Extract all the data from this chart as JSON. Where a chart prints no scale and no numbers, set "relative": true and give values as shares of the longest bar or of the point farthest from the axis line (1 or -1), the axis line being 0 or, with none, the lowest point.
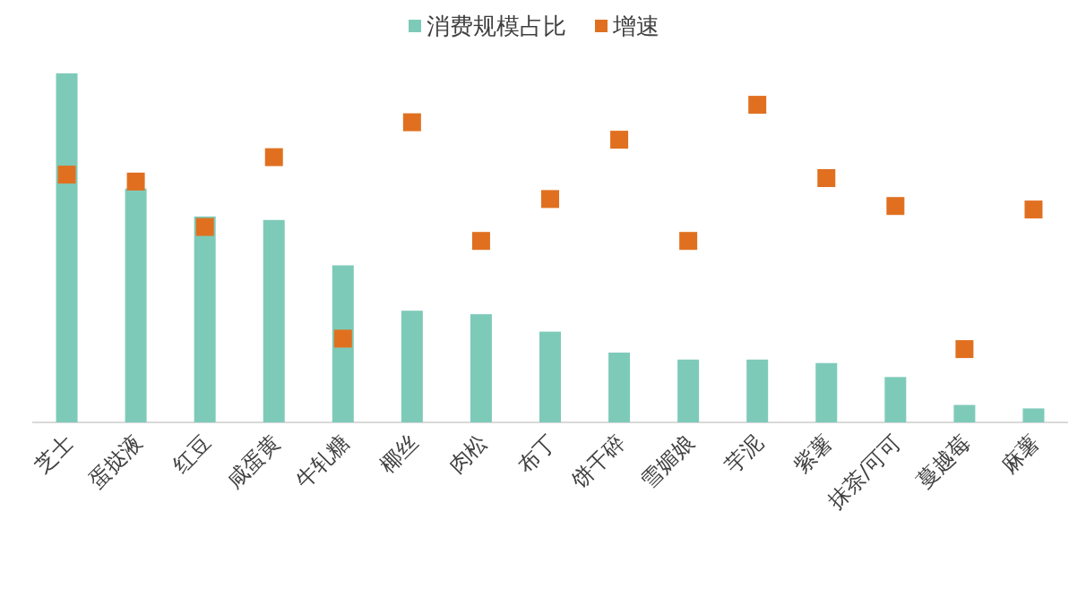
{
  "chart_data": {
    "type": "bar",
    "relative": true,
    "legend": "top",
    "categories": [
      "芝士",
      "蛋挞液",
      "红豆",
      "咸蛋黄",
      "牛轧糖",
      "椰丝",
      "肉松",
      "布丁",
      "饼干碎",
      "雪媚娘",
      "芋泥",
      "紫薯",
      "抹茶/可可",
      "蔓越莓",
      "麻薯"
    ],
    "series": [
      {
        "name": "消费规模占比",
        "color": "#7ecab9",
        "values": [
          1,
          0.67,
          0.59,
          0.58,
          0.45,
          0.32,
          0.31,
          0.26,
          0.2,
          0.18,
          0.18,
          0.17,
          0.13,
          0.05,
          0.04
        ]
      },
      {
        "name": "增速",
        "type": "scatter",
        "marker": "square",
        "color": "#e07020",
        "values": [
          0.71,
          0.69,
          0.56,
          0.76,
          0.24,
          0.86,
          0.52,
          0.64,
          0.81,
          0.52,
          0.91,
          0.7,
          0.62,
          0.21,
          0.61
        ]
      }
    ]
  }
}
